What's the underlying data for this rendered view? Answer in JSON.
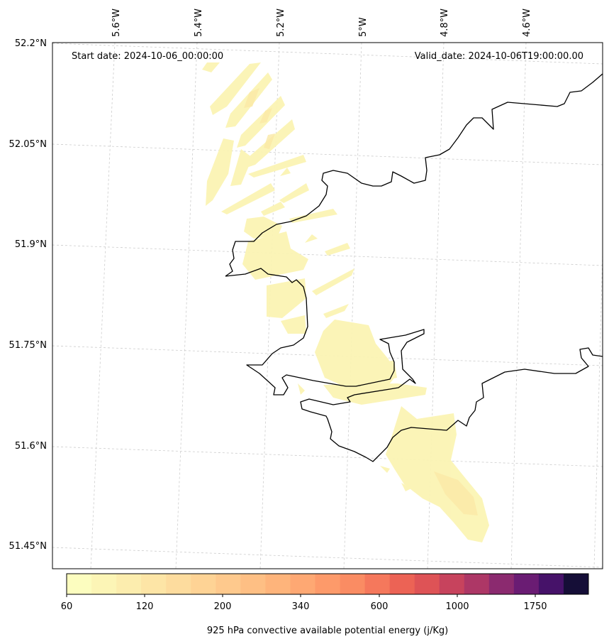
{
  "map": {
    "start_label": "Start date: 2024-10-06_00:00:00",
    "valid_label": "Valid_date: 2024-10-06T19:00:00.00",
    "lon_labels": [
      "5.6°W",
      "5.4°W",
      "5.2°W",
      "5°W",
      "4.8°W",
      "4.6°W"
    ],
    "lat_labels": [
      "52.2°N",
      "52.05°N",
      "51.9°N",
      "51.75°N",
      "51.6°N",
      "51.45°N"
    ],
    "gridlines": true,
    "coastline_color": "#000000"
  },
  "colorbar": {
    "label": "925 hPa convective available potential energy (j/Kg)",
    "tick_labels": [
      "60",
      "120",
      "200",
      "340",
      "600",
      "1000",
      "1750"
    ],
    "colors": [
      "#fcfdbf",
      "#fcf5b6",
      "#fcedae",
      "#fde5a6",
      "#fddc9e",
      "#fed395",
      "#fec98d",
      "#febf84",
      "#feb47b",
      "#fea873",
      "#fd9a6a",
      "#fa8c63",
      "#f5785c",
      "#ec6355",
      "#de5356",
      "#c7435d",
      "#ad3766",
      "#8b2a6f",
      "#6a1c73",
      "#461269",
      "#150e37"
    ]
  }
}
